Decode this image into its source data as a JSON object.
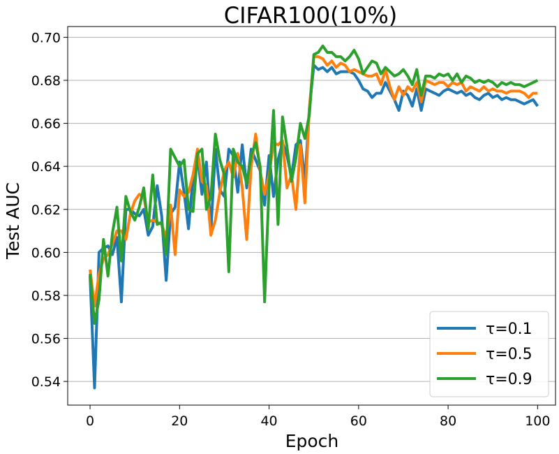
{
  "chart_data": {
    "type": "line",
    "title": "CIFAR100(10%)",
    "xlabel": "Epoch",
    "ylabel": "Test AUC",
    "xlim": [
      -5,
      104
    ],
    "ylim": [
      0.529,
      0.705
    ],
    "xticks": [
      0,
      20,
      40,
      60,
      80,
      100
    ],
    "yticks": [
      0.54,
      0.56,
      0.58,
      0.6,
      0.62,
      0.64,
      0.66,
      0.68,
      0.7
    ],
    "xtick_labels": [
      "0",
      "20",
      "40",
      "60",
      "80",
      "100"
    ],
    "ytick_labels": [
      "0.54",
      "0.56",
      "0.58",
      "0.60",
      "0.62",
      "0.64",
      "0.66",
      "0.68",
      "0.70"
    ],
    "grid": "horizontal",
    "legend_position": "bottom-right",
    "series": [
      {
        "name": "τ=0.1",
        "color": "#1f77b4",
        "values": [
          0.589,
          0.537,
          0.6,
          0.602,
          0.603,
          0.599,
          0.607,
          0.577,
          0.62,
          0.62,
          0.618,
          0.617,
          0.62,
          0.608,
          0.612,
          0.631,
          0.617,
          0.587,
          0.618,
          0.621,
          0.642,
          0.628,
          0.611,
          0.635,
          0.645,
          0.627,
          0.642,
          0.61,
          0.648,
          0.629,
          0.626,
          0.648,
          0.645,
          0.628,
          0.65,
          0.63,
          0.648,
          0.643,
          0.638,
          0.622,
          0.645,
          0.626,
          0.643,
          0.651,
          0.645,
          0.635,
          0.65,
          0.652,
          0.633,
          0.667,
          0.687,
          0.685,
          0.686,
          0.684,
          0.686,
          0.683,
          0.684,
          0.684,
          0.684,
          0.683,
          0.68,
          0.676,
          0.675,
          0.672,
          0.674,
          0.674,
          0.679,
          0.675,
          0.671,
          0.666,
          0.675,
          0.673,
          0.668,
          0.676,
          0.666,
          0.676,
          0.675,
          0.674,
          0.673,
          0.675,
          0.676,
          0.675,
          0.674,
          0.675,
          0.673,
          0.674,
          0.672,
          0.671,
          0.673,
          0.674,
          0.672,
          0.673,
          0.671,
          0.672,
          0.671,
          0.671,
          0.67,
          0.669,
          0.67,
          0.671,
          0.668
        ]
      },
      {
        "name": "τ=0.5",
        "color": "#ff7f0e",
        "values": [
          0.592,
          0.575,
          0.59,
          0.597,
          0.599,
          0.604,
          0.61,
          0.61,
          0.606,
          0.618,
          0.624,
          0.627,
          0.626,
          0.614,
          0.615,
          0.614,
          0.613,
          0.607,
          0.622,
          0.599,
          0.629,
          0.626,
          0.628,
          0.636,
          0.648,
          0.633,
          0.631,
          0.608,
          0.615,
          0.628,
          0.638,
          0.642,
          0.635,
          0.646,
          0.63,
          0.606,
          0.64,
          0.655,
          0.638,
          0.627,
          0.636,
          0.651,
          0.65,
          0.652,
          0.63,
          0.636,
          0.62,
          0.65,
          0.623,
          0.667,
          0.691,
          0.691,
          0.69,
          0.687,
          0.689,
          0.686,
          0.688,
          0.687,
          0.684,
          0.685,
          0.684,
          0.683,
          0.682,
          0.682,
          0.683,
          0.678,
          0.685,
          0.677,
          0.671,
          0.677,
          0.673,
          0.677,
          0.675,
          0.679,
          0.67,
          0.68,
          0.679,
          0.678,
          0.679,
          0.679,
          0.677,
          0.679,
          0.678,
          0.679,
          0.675,
          0.677,
          0.676,
          0.675,
          0.677,
          0.675,
          0.676,
          0.675,
          0.675,
          0.674,
          0.675,
          0.675,
          0.675,
          0.674,
          0.672,
          0.674,
          0.674
        ]
      },
      {
        "name": "τ=0.9",
        "color": "#2ca02c",
        "values": [
          0.59,
          0.567,
          0.578,
          0.606,
          0.589,
          0.609,
          0.621,
          0.596,
          0.626,
          0.619,
          0.615,
          0.621,
          0.63,
          0.611,
          0.636,
          0.613,
          0.614,
          0.599,
          0.648,
          0.644,
          0.64,
          0.643,
          0.62,
          0.619,
          0.646,
          0.648,
          0.62,
          0.626,
          0.655,
          0.643,
          0.636,
          0.591,
          0.648,
          0.642,
          0.64,
          0.632,
          0.645,
          0.651,
          0.64,
          0.577,
          0.631,
          0.666,
          0.613,
          0.663,
          0.649,
          0.633,
          0.644,
          0.66,
          0.653,
          0.664,
          0.692,
          0.693,
          0.696,
          0.693,
          0.693,
          0.691,
          0.691,
          0.689,
          0.691,
          0.694,
          0.69,
          0.683,
          0.686,
          0.689,
          0.688,
          0.683,
          0.686,
          0.684,
          0.682,
          0.683,
          0.685,
          0.682,
          0.678,
          0.685,
          0.673,
          0.682,
          0.682,
          0.681,
          0.683,
          0.682,
          0.683,
          0.68,
          0.683,
          0.679,
          0.682,
          0.681,
          0.679,
          0.68,
          0.679,
          0.68,
          0.679,
          0.677,
          0.679,
          0.678,
          0.679,
          0.678,
          0.678,
          0.677,
          0.678,
          0.679,
          0.68
        ]
      }
    ]
  }
}
